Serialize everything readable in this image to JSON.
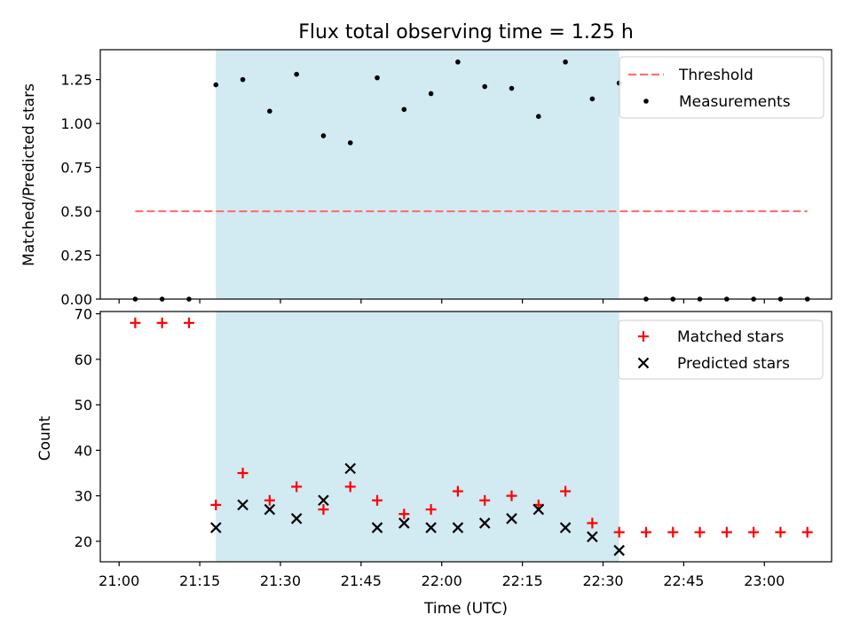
{
  "chart_data": [
    {
      "type": "scatter",
      "title": "Flux total observing time = 1.25 h",
      "ylabel": "Matched/Predicted stars",
      "xlabel": "",
      "x_minutes": [
        "21:03",
        "21:08",
        "21:13",
        "21:18",
        "21:23",
        "21:28",
        "21:33",
        "21:38",
        "21:43",
        "21:48",
        "21:53",
        "21:58",
        "22:03",
        "22:08",
        "22:13",
        "22:18",
        "22:23",
        "22:28",
        "22:33",
        "22:38",
        "22:43",
        "22:48",
        "22:53",
        "22:58",
        "23:03",
        "23:08"
      ],
      "ylim": [
        0,
        1.42
      ],
      "yticks": [
        "0.00",
        "0.25",
        "0.50",
        "0.75",
        "1.00",
        "1.25"
      ],
      "highlight_span": [
        "21:18",
        "22:33"
      ],
      "legend_position": "upper right",
      "series": [
        {
          "name": "Threshold",
          "style": "dashed-line",
          "color": "#ff7070",
          "x": [
            "21:03",
            "23:08"
          ],
          "values": [
            0.5,
            0.5
          ]
        },
        {
          "name": "Measurements",
          "style": "dot",
          "color": "#000000",
          "x": [
            "21:03",
            "21:08",
            "21:13",
            "21:18",
            "21:23",
            "21:28",
            "21:33",
            "21:38",
            "21:43",
            "21:48",
            "21:53",
            "21:58",
            "22:03",
            "22:08",
            "22:13",
            "22:18",
            "22:23",
            "22:28",
            "22:33",
            "22:38",
            "22:43",
            "22:48",
            "22:53",
            "22:58",
            "23:03",
            "23:08"
          ],
          "values": [
            0,
            0,
            0,
            1.22,
            1.25,
            1.07,
            1.28,
            0.93,
            0.89,
            1.26,
            1.08,
            1.17,
            1.35,
            1.21,
            1.2,
            1.04,
            1.35,
            1.14,
            1.23,
            0,
            0,
            0,
            0,
            0,
            0,
            0
          ]
        }
      ]
    },
    {
      "type": "scatter",
      "title": "",
      "ylabel": "Count",
      "xlabel": "Time (UTC)",
      "ylim": [
        15.5,
        70.5
      ],
      "yticks": [
        "20",
        "30",
        "40",
        "50",
        "60",
        "70"
      ],
      "xticks": [
        "21:00",
        "21:15",
        "21:30",
        "21:45",
        "22:00",
        "22:15",
        "22:30",
        "22:45",
        "23:00"
      ],
      "highlight_span": [
        "21:18",
        "22:33"
      ],
      "legend_position": "upper right",
      "series": [
        {
          "name": "Matched stars",
          "style": "plus",
          "color": "#ff0000",
          "x": [
            "21:03",
            "21:08",
            "21:13",
            "21:18",
            "21:23",
            "21:28",
            "21:33",
            "21:38",
            "21:43",
            "21:48",
            "21:53",
            "21:58",
            "22:03",
            "22:08",
            "22:13",
            "22:18",
            "22:23",
            "22:28",
            "22:33",
            "22:38",
            "22:43",
            "22:48",
            "22:53",
            "22:58",
            "23:03",
            "23:08"
          ],
          "values": [
            68,
            68,
            68,
            28,
            35,
            29,
            32,
            27,
            32,
            29,
            26,
            27,
            31,
            29,
            30,
            28,
            31,
            24,
            22,
            22,
            22,
            22,
            22,
            22,
            22,
            22
          ]
        },
        {
          "name": "Predicted stars",
          "style": "x",
          "color": "#000000",
          "x": [
            "21:18",
            "21:23",
            "21:28",
            "21:33",
            "21:38",
            "21:43",
            "21:48",
            "21:53",
            "21:58",
            "22:03",
            "22:08",
            "22:13",
            "22:18",
            "22:23",
            "22:28",
            "22:33"
          ],
          "values": [
            23,
            28,
            27,
            25,
            29,
            36,
            23,
            24,
            23,
            23,
            24,
            25,
            27,
            23,
            21,
            18
          ]
        }
      ]
    }
  ],
  "colors": {
    "span_fill": "#add8e6",
    "threshold": "#ff7070",
    "matched": "#ff0000",
    "predicted": "#000000"
  }
}
